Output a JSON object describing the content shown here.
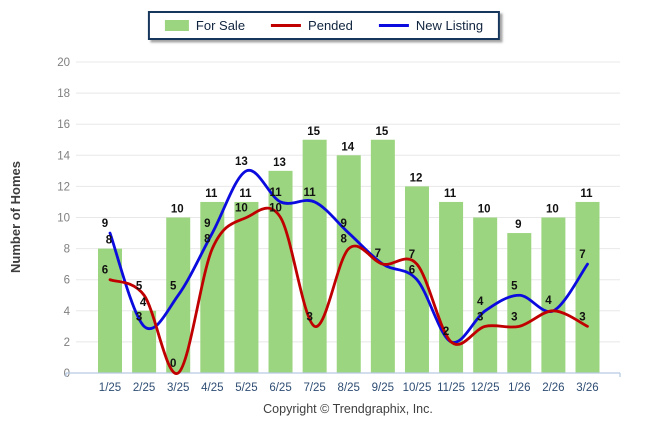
{
  "legend": {
    "items": [
      {
        "label": "For Sale",
        "swatch": "bar-swatch",
        "color": "#9cd57f"
      },
      {
        "label": "Pended",
        "swatch": "line-swatch",
        "color": "#c00000"
      },
      {
        "label": "New Listing",
        "swatch": "line-swatch",
        "color": "#0b0bdf"
      }
    ]
  },
  "footer": {
    "copyright": "Copyright © Trendgraphix, Inc."
  },
  "chart_data": {
    "type": "bar+line combo",
    "categories": [
      "1/25",
      "2/25",
      "3/25",
      "4/25",
      "5/25",
      "6/25",
      "7/25",
      "8/25",
      "9/25",
      "10/25",
      "11/25",
      "12/25",
      "1/26",
      "2/26",
      "3/26"
    ],
    "series": [
      {
        "name": "For Sale",
        "type": "bar",
        "color": "#9cd57f",
        "values": [
          8,
          4,
          10,
          11,
          11,
          13,
          15,
          14,
          15,
          12,
          11,
          10,
          9,
          10,
          11
        ]
      },
      {
        "name": "Pended",
        "type": "line",
        "color": "#c00000",
        "values": [
          6,
          5,
          0,
          8,
          10,
          10,
          3,
          8,
          7,
          7,
          2,
          3,
          3,
          4,
          3
        ]
      },
      {
        "name": "New Listing",
        "type": "line",
        "color": "#0b0bdf",
        "values": [
          9,
          3,
          5,
          9,
          13,
          11,
          11,
          9,
          7,
          6,
          2,
          4,
          5,
          4,
          7
        ]
      }
    ],
    "title": "",
    "xlabel": "",
    "ylabel": "Number of Homes",
    "ylim": [
      0,
      20
    ],
    "ytick_step": 2,
    "grid": true,
    "legend_position": "top-center",
    "colors": {
      "grid_line": "#e8e8e8",
      "axis_line": "#b7cbe3",
      "y_tick_text": "#7f7f7f",
      "x_tick_text": "#2e4d73",
      "value_label_text": "#111111",
      "y_axis_title_text": "#3d3d3d"
    }
  }
}
